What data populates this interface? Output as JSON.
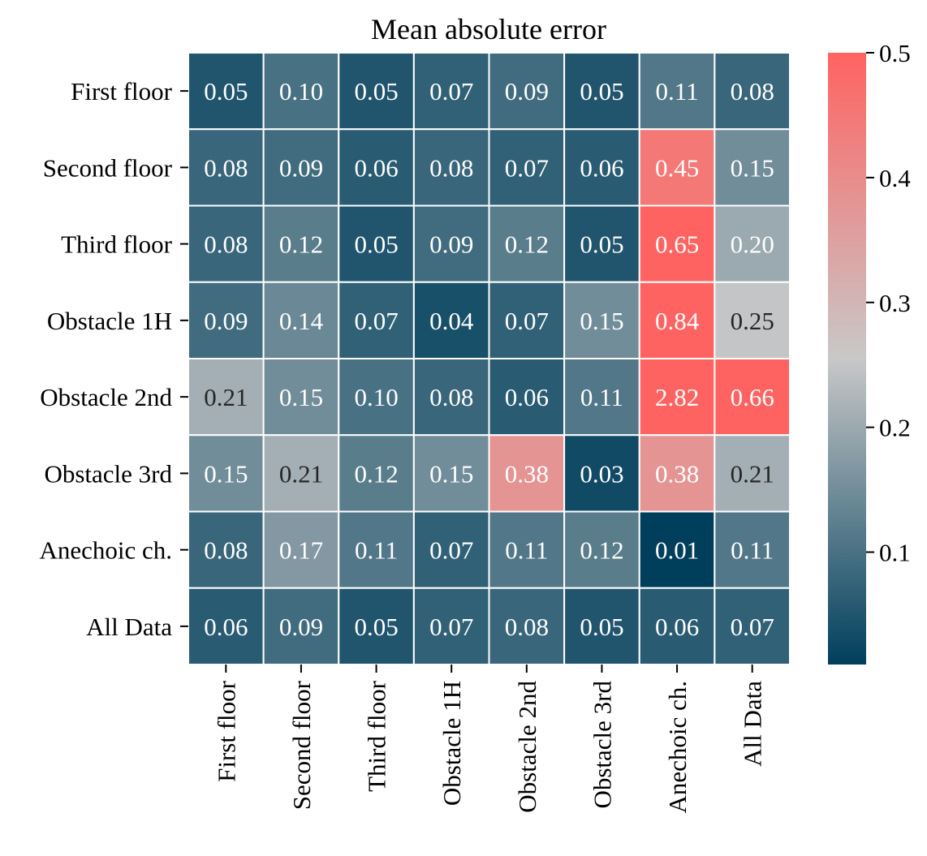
{
  "chart_data": {
    "type": "heatmap",
    "title": "Mean absolute error",
    "rows": [
      "First floor",
      "Second floor",
      "Third floor",
      "Obstacle 1H",
      "Obstacle 2nd",
      "Obstacle 3rd",
      "Anechoic ch.",
      "All Data"
    ],
    "columns": [
      "First floor",
      "Second floor",
      "Third floor",
      "Obstacle 1H",
      "Obstacle 2nd",
      "Obstacle 3rd",
      "Anechoic ch.",
      "All Data"
    ],
    "values": [
      [
        0.05,
        0.1,
        0.05,
        0.07,
        0.09,
        0.05,
        0.11,
        0.08
      ],
      [
        0.08,
        0.09,
        0.06,
        0.08,
        0.07,
        0.06,
        0.45,
        0.15
      ],
      [
        0.08,
        0.12,
        0.05,
        0.09,
        0.12,
        0.05,
        0.65,
        0.2
      ],
      [
        0.09,
        0.14,
        0.07,
        0.04,
        0.07,
        0.15,
        0.84,
        0.25
      ],
      [
        0.21,
        0.15,
        0.1,
        0.08,
        0.06,
        0.11,
        2.82,
        0.66
      ],
      [
        0.15,
        0.21,
        0.12,
        0.15,
        0.38,
        0.03,
        0.38,
        0.21
      ],
      [
        0.08,
        0.17,
        0.11,
        0.07,
        0.11,
        0.12,
        0.01,
        0.11
      ],
      [
        0.06,
        0.09,
        0.05,
        0.07,
        0.08,
        0.05,
        0.06,
        0.07
      ]
    ],
    "vmin": 0.01,
    "vmax": 0.5,
    "colorbar_ticks": [
      0.1,
      0.2,
      0.3,
      0.4,
      0.5
    ],
    "colorbar_tick_labels": [
      "0.1",
      "0.2",
      "0.3",
      "0.4",
      "0.5"
    ],
    "colormap": [
      "#003f5c",
      "#c8c8c8",
      "#ff6361"
    ],
    "annotation_colors": {
      "light": "#ffffff",
      "dark": "#262626"
    },
    "grid_line_color": "#ffffff"
  }
}
